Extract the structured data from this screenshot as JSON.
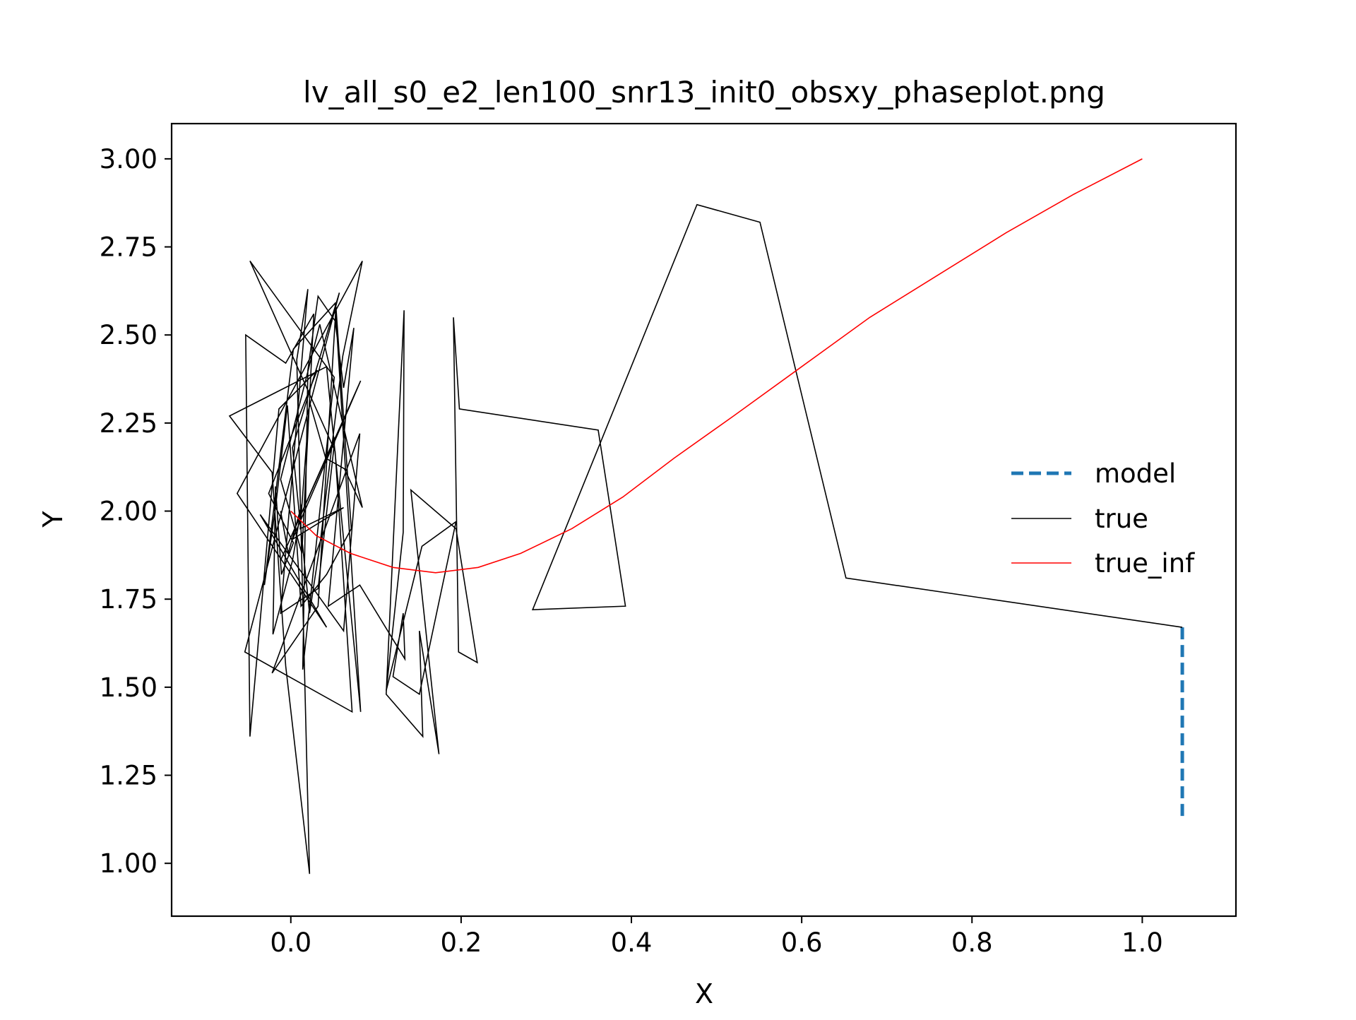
{
  "chart_data": {
    "type": "line",
    "title": "lv_all_s0_e2_len100_snr13_init0_obsxy_phaseplot.png",
    "xlabel": "X",
    "ylabel": "Y",
    "xlim": [
      -0.14,
      1.11
    ],
    "ylim": [
      0.85,
      3.1
    ],
    "xticks": [
      0.0,
      0.2,
      0.4,
      0.6,
      0.8,
      1.0
    ],
    "xtick_labels": [
      "0.0",
      "0.2",
      "0.4",
      "0.6",
      "0.8",
      "1.0"
    ],
    "yticks": [
      1.0,
      1.25,
      1.5,
      1.75,
      2.0,
      2.25,
      2.5,
      2.75,
      3.0
    ],
    "ytick_labels": [
      "1.00",
      "1.25",
      "1.50",
      "1.75",
      "2.00",
      "2.25",
      "2.50",
      "2.75",
      "3.00"
    ],
    "grid": false,
    "legend_position": "center-right",
    "series": [
      {
        "name": "model",
        "color": "#1f77b4",
        "style": "dashed",
        "x": [
          1.047,
          1.047
        ],
        "y": [
          1.67,
          1.13
        ]
      },
      {
        "name": "true",
        "color": "#000000",
        "style": "solid",
        "x": [
          1.047,
          0.652,
          0.551,
          0.477,
          0.284,
          0.393,
          0.361,
          0.198,
          0.191,
          0.197,
          0.219,
          0.194,
          0.141,
          0.174,
          0.151,
          0.155,
          0.112,
          0.133,
          0.132,
          0.112,
          0.154,
          0.194,
          0.151,
          0.12,
          0.132,
          0.134,
          0.081,
          0.044,
          0.074,
          0.062,
          0.052,
          0.032,
          0.02,
          0.014,
          0.051,
          -0.048,
          0.052,
          0.072,
          -0.054,
          0.057,
          0.002,
          0.022,
          0.034,
          0.061,
          0.084,
          -0.063,
          0.042,
          -0.036,
          0.062,
          0.081,
          -0.022,
          0.032,
          0.053,
          0.071,
          0.042,
          0.012,
          -0.004,
          -0.018,
          -0.031,
          0.003,
          0.052,
          0.082,
          0.042,
          -0.072,
          -0.022,
          -0.006,
          0.022,
          0.007,
          0.02,
          -0.012,
          0.032,
          0.052,
          -0.012,
          0.082,
          0.002,
          0.062,
          0.011,
          0.022,
          0.041,
          0.063,
          0.084,
          0.034,
          -0.012,
          0.013,
          0.027,
          -0.006,
          -0.053,
          -0.048,
          -0.014,
          0.031,
          -0.026,
          0.003,
          -0.011,
          -0.016,
          -0.018,
          -0.021,
          0.002,
          0.013,
          -0.003,
          -0.012
        ],
        "y": [
          1.67,
          1.81,
          2.82,
          2.87,
          1.72,
          1.73,
          2.23,
          2.29,
          2.55,
          1.6,
          1.57,
          1.95,
          2.06,
          1.31,
          1.66,
          1.36,
          1.48,
          2.57,
          1.94,
          1.49,
          1.9,
          1.97,
          1.48,
          1.53,
          1.71,
          1.58,
          1.79,
          1.73,
          2.52,
          2.35,
          2.54,
          2.61,
          2.4,
          1.55,
          2.38,
          2.71,
          2.17,
          1.43,
          1.6,
          2.62,
          2.18,
          1.71,
          1.9,
          2.44,
          2.71,
          2.05,
          1.67,
          1.99,
          1.66,
          2.22,
          1.54,
          1.73,
          2.58,
          1.95,
          1.82,
          1.73,
          2.3,
          2.01,
          1.79,
          2.46,
          2.59,
          1.43,
          2.41,
          2.27,
          2.11,
          1.56,
          0.97,
          2.43,
          2.63,
          1.71,
          1.78,
          2.21,
          1.86,
          2.37,
          1.92,
          2.01,
          1.95,
          2.31,
          2.15,
          2.12,
          2.01,
          2.53,
          2.09,
          1.88,
          2.56,
          2.42,
          2.5,
          1.36,
          2.29,
          2.4,
          2.05,
          1.91,
          1.82,
          2.0,
          2.07,
          1.65,
          1.86,
          2.02,
          1.88,
          2.0
        ]
      },
      {
        "name": "true_inf",
        "color": "#ff0000",
        "style": "solid",
        "x": [
          0.0,
          0.03,
          0.07,
          0.12,
          0.17,
          0.22,
          0.27,
          0.33,
          0.39,
          0.45,
          0.52,
          0.6,
          0.68,
          0.76,
          0.84,
          0.92,
          1.0
        ],
        "y": [
          2.0,
          1.93,
          1.88,
          1.84,
          1.825,
          1.84,
          1.88,
          1.95,
          2.04,
          2.15,
          2.27,
          2.41,
          2.55,
          2.67,
          2.79,
          2.9,
          3.0
        ]
      }
    ]
  }
}
